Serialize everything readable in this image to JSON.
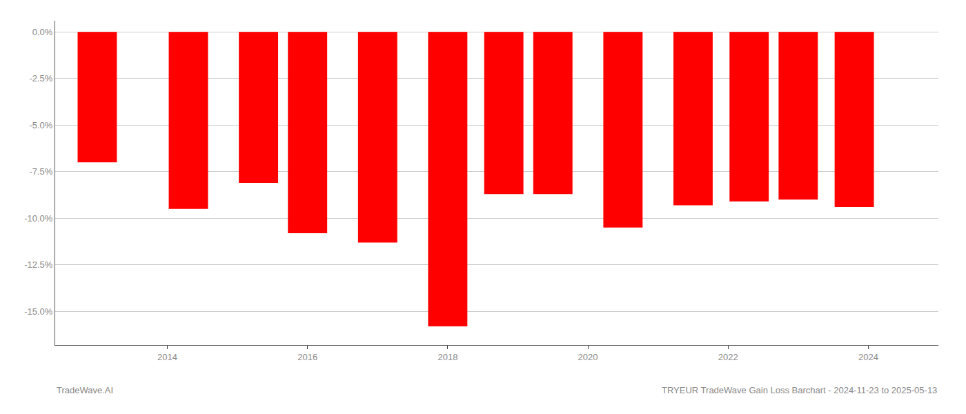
{
  "chart_data": {
    "type": "bar",
    "title": "TRYEUR TradeWave Gain Loss Barchart - 2024-11-23 to 2025-05-13",
    "annotations": [
      "TradeWave.AI"
    ],
    "x": [
      2013.0,
      2014.3,
      2015.3,
      2016.0,
      2017.0,
      2018.0,
      2018.8,
      2019.5,
      2020.5,
      2021.5,
      2022.3,
      2023.0,
      2023.8
    ],
    "values": [
      -7.0,
      -9.5,
      -8.1,
      -10.8,
      -11.3,
      -15.8,
      -8.7,
      -8.7,
      -10.5,
      -9.3,
      -9.1,
      -9.0,
      -9.4
    ],
    "color": "#ff0000",
    "xlim": [
      2012.4,
      2025.0
    ],
    "xticks": [
      2014,
      2016,
      2018,
      2020,
      2022,
      2024
    ],
    "ylim": [
      -16.8,
      0.6
    ],
    "yticks": [
      {
        "value": 0.0,
        "label": "0.0%"
      },
      {
        "value": -2.5,
        "label": "-2.5%"
      },
      {
        "value": -5.0,
        "label": "-5.0%"
      },
      {
        "value": -7.5,
        "label": "-7.5%"
      },
      {
        "value": -10.0,
        "label": "-10.0%"
      },
      {
        "value": -12.5,
        "label": "-12.5%"
      },
      {
        "value": -15.0,
        "label": "-15.0%"
      }
    ],
    "grid": true
  }
}
